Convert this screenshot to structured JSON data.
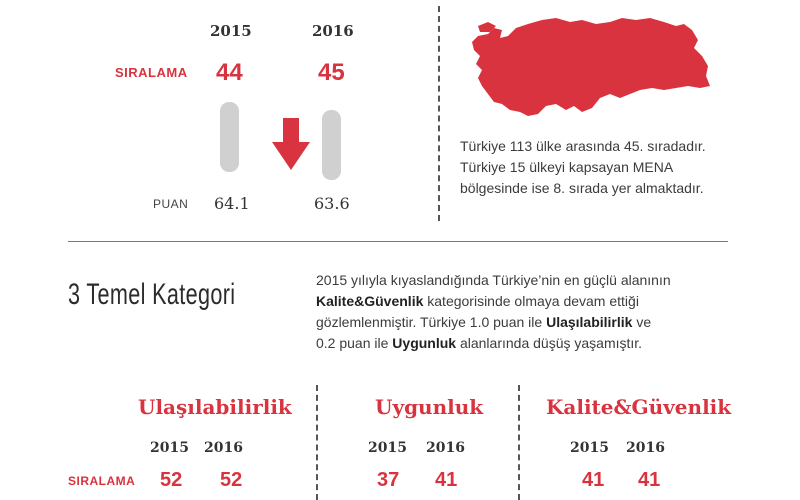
{
  "top": {
    "year_a": "2015",
    "year_b": "2016",
    "rank_label": "SIRALAMA",
    "rank_a": "44",
    "rank_b": "45",
    "puan_label": "PUAN",
    "puan_a": "64.1",
    "puan_b": "63.6"
  },
  "map": {
    "color": "#d9333f",
    "desc": "Türkiye 113 ülke arasında 45. sıradadır. Türkiye 15 ülkeyi kapsayan MENA bölgesinde ise 8. sırada yer almaktadır."
  },
  "section": {
    "heading": "3 Temel Kategori",
    "para_1": "2015 yılıyla kıyaslandığında Türkiye’nin en güçlü alanının",
    "para_2_bold": "Kalite&Güvenlik",
    "para_2_rest": " kategorisinde olmaya devam ettiği",
    "para_3_a": "gözlemlenmiştir. Türkiye 1.0 puan ile ",
    "para_3_bold": "Ulaşılabilirlik",
    "para_3_b": " ve",
    "para_4_a": "0.2 puan ile ",
    "para_4_bold": "Uygunluk",
    "para_4_b": " alanlarında düşüş yaşamıştır."
  },
  "categories": [
    {
      "title": "Ulaşılabilirlik",
      "year_a": "2015",
      "year_b": "2016",
      "rank_a": "52",
      "rank_b": "52"
    },
    {
      "title": "Uygunluk",
      "year_a": "2015",
      "year_b": "2016",
      "rank_a": "37",
      "rank_b": "41"
    },
    {
      "title": "Kalite&Güvenlik",
      "year_a": "2015",
      "year_b": "2016",
      "rank_a": "41",
      "rank_b": "41"
    }
  ],
  "bottom_rank_label": "SIRALAMA",
  "colors": {
    "accent": "#d9333f",
    "bar": "#d0d0d0"
  }
}
